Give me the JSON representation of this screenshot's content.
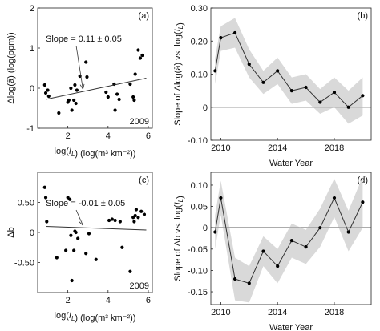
{
  "chart_data": [
    {
      "panel": "(a)",
      "type": "scatter",
      "xlabel": "log(I_L) (log(m³ km⁻²))",
      "ylabel": "Δlog(ā) (log(ppm))",
      "xlim": [
        0.5,
        6.2
      ],
      "ylim": [
        -1,
        2
      ],
      "xticks": [
        2,
        4,
        6
      ],
      "yticks": [
        -1,
        0,
        1,
        2
      ],
      "zero_line": false,
      "annotation": "Slope = 0.11 ± 0.05",
      "year_label": "2009",
      "points": {
        "x": [
          0.85,
          0.9,
          1.0,
          1.05,
          1.55,
          2.0,
          2.05,
          2.15,
          2.2,
          2.3,
          2.35,
          2.4,
          2.45,
          2.6,
          2.9,
          2.95,
          3.9,
          4.0,
          4.3,
          4.35,
          4.45,
          4.55,
          5.1,
          5.25,
          5.3,
          5.35,
          5.5,
          5.6,
          5.7
        ],
        "y": [
          0.08,
          -0.12,
          -0.05,
          -0.2,
          -0.62,
          -0.35,
          -0.3,
          0.0,
          -0.55,
          -0.3,
          0.08,
          -0.38,
          -0.05,
          0.3,
          0.65,
          0.28,
          -0.1,
          -0.22,
          0.1,
          -0.55,
          -0.15,
          -0.28,
          0.1,
          -0.22,
          -0.3,
          0.35,
          0.95,
          0.75,
          0.82
        ]
      },
      "fit_line": {
        "x": [
          0.9,
          5.9
        ],
        "y": [
          -0.28,
          0.25
        ]
      }
    },
    {
      "panel": "(b)",
      "type": "line",
      "xlabel": "Water Year",
      "ylabel": "Slope of Δlog(ā) vs. log(I_L)",
      "xlim": [
        2009.3,
        2020.6
      ],
      "ylim": [
        -0.1,
        0.3
      ],
      "xticks": [
        2010,
        2014,
        2018
      ],
      "yticks": [
        -0.1,
        0,
        0.1,
        0.2,
        0.3
      ],
      "zero_line": true,
      "series": [
        {
          "x": [
            2009.6,
            2010,
            2011,
            2012,
            2013,
            2014,
            2015,
            2016,
            2017,
            2018,
            2019,
            2020
          ],
          "y": [
            0.11,
            0.21,
            0.225,
            0.13,
            0.075,
            0.11,
            0.05,
            0.06,
            0.015,
            0.045,
            0.0,
            0.035
          ],
          "lower": [
            0.07,
            0.17,
            0.18,
            0.09,
            0.04,
            0.07,
            0.01,
            0.02,
            -0.02,
            0.0,
            -0.05,
            -0.025
          ],
          "upper": [
            0.15,
            0.245,
            0.27,
            0.175,
            0.11,
            0.15,
            0.09,
            0.1,
            0.055,
            0.09,
            0.05,
            0.09
          ]
        }
      ]
    },
    {
      "panel": "(c)",
      "type": "scatter",
      "xlabel": "log(I_L) (log(m³ km⁻²))",
      "ylabel": "Δb",
      "xlim": [
        0.5,
        6.2
      ],
      "ylim": [
        -1,
        1
      ],
      "xticks": [
        2,
        4,
        6
      ],
      "yticks": [
        -0.5,
        0,
        0.5
      ],
      "zero_line": false,
      "annotation": "Slope = -0.01 ± 0.05",
      "year_label": "2009",
      "points": {
        "x": [
          0.85,
          0.9,
          0.95,
          1.45,
          1.9,
          2.0,
          2.1,
          2.15,
          2.2,
          2.3,
          2.35,
          2.4,
          2.5,
          2.9,
          3.05,
          3.4,
          4.05,
          4.2,
          4.35,
          4.6,
          4.7,
          5.1,
          5.25,
          5.3,
          5.35,
          5.4,
          5.5,
          5.65,
          5.8
        ],
        "y": [
          0.75,
          0.58,
          0.18,
          -0.42,
          -0.3,
          0.58,
          0.55,
          -0.05,
          -0.8,
          -0.3,
          0.02,
          0.0,
          -0.1,
          -0.35,
          -0.02,
          -0.45,
          0.2,
          0.22,
          0.2,
          0.18,
          -0.25,
          -0.65,
          0.25,
          0.18,
          0.28,
          0.38,
          0.25,
          0.35,
          0.3
        ]
      },
      "fit_line": {
        "x": [
          0.9,
          5.9
        ],
        "y": [
          0.1,
          0.04
        ]
      }
    },
    {
      "panel": "(d)",
      "type": "line",
      "xlabel": "Water Year",
      "ylabel": "Slope of Δb vs. log(I_L)",
      "xlim": [
        2009.3,
        2020.6
      ],
      "ylim": [
        -0.18,
        0.13
      ],
      "xticks": [
        2010,
        2014,
        2018
      ],
      "yticks": [
        -0.15,
        -0.1,
        -0.05,
        0,
        0.05,
        0.1
      ],
      "zero_line": true,
      "series": [
        {
          "x": [
            2009.6,
            2010,
            2011,
            2012,
            2013,
            2014,
            2015,
            2016,
            2017,
            2018,
            2019,
            2020
          ],
          "y": [
            -0.01,
            0.07,
            -0.12,
            -0.13,
            -0.055,
            -0.09,
            -0.03,
            -0.045,
            0.0,
            0.07,
            -0.01,
            0.06
          ],
          "lower": [
            -0.05,
            0.03,
            -0.17,
            -0.175,
            -0.09,
            -0.13,
            -0.07,
            -0.085,
            -0.045,
            0.025,
            -0.055,
            0.0
          ],
          "upper": [
            0.03,
            0.11,
            -0.07,
            -0.09,
            -0.02,
            -0.05,
            0.01,
            -0.005,
            0.045,
            0.115,
            0.04,
            0.12
          ]
        }
      ]
    }
  ],
  "colors": {
    "band": "#d9d9d9",
    "line": "#333333",
    "marker": "#000000"
  }
}
